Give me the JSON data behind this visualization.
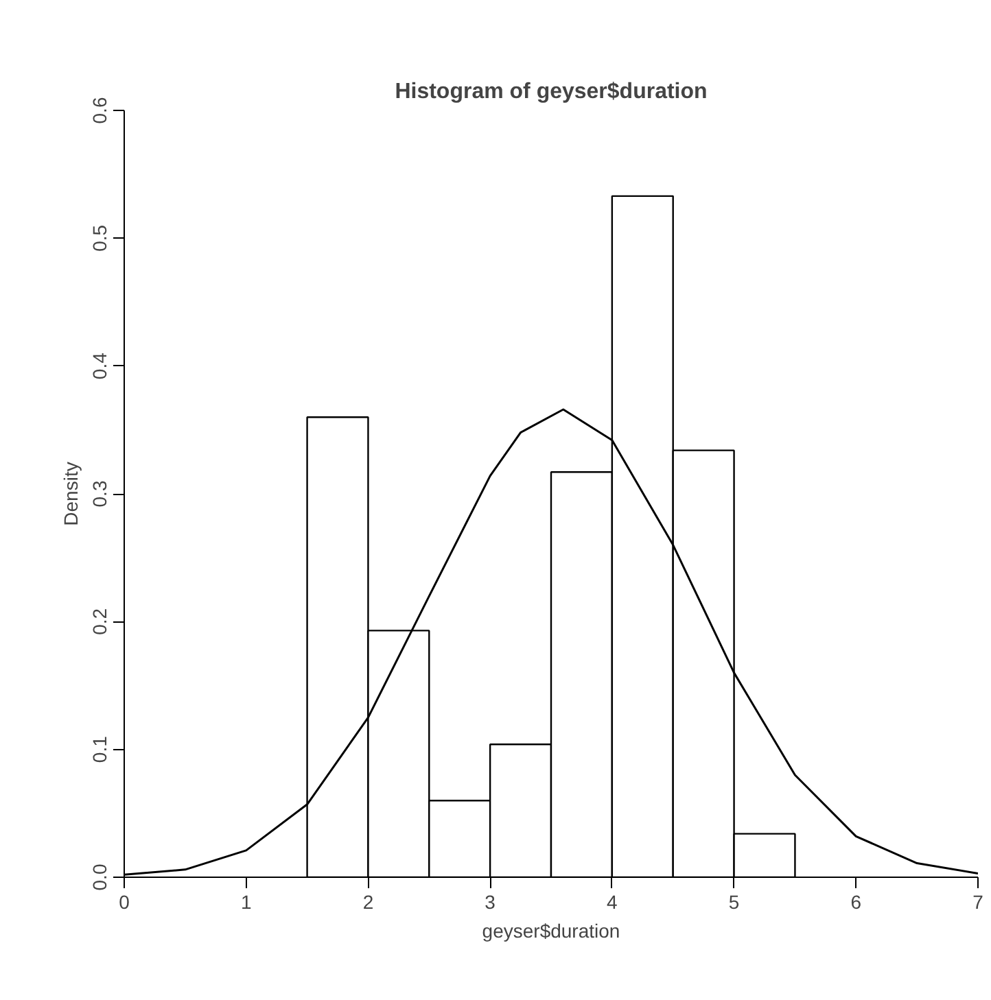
{
  "chart_data": {
    "type": "histogram",
    "title": "Histogram of geyser$duration",
    "xlabel": "geyser$duration",
    "ylabel": "Density",
    "bins": [
      1.5,
      2,
      2.5,
      3,
      3.5,
      4,
      4.5,
      5,
      5.5
    ],
    "values": [
      0.36,
      0.193,
      0.06,
      0.104,
      0.317,
      0.533,
      0.334,
      0.034
    ],
    "color": "#ffffff",
    "series": [
      {
        "type": "line",
        "color": "#000000",
        "x": [
          0,
          0.5,
          1,
          1.5,
          2,
          2.5,
          3,
          3.25,
          3.6,
          4,
          4.5,
          5,
          5.5,
          6,
          6.5,
          7
        ],
        "values": [
          0.002,
          0.006,
          0.021,
          0.057,
          0.125,
          0.22,
          0.314,
          0.348,
          0.366,
          0.342,
          0.26,
          0.16,
          0.08,
          0.032,
          0.011,
          0.003
        ]
      }
    ],
    "xlim": [
      0,
      7
    ],
    "ylim": [
      0,
      0.6
    ],
    "xticks": [
      0,
      1,
      2,
      3,
      4,
      5,
      6,
      7
    ],
    "yticks": [
      {
        "value": 0,
        "label": "0.0"
      },
      0.1,
      0.2,
      0.3,
      0.4,
      0.5,
      0.6
    ],
    "grid": false
  }
}
